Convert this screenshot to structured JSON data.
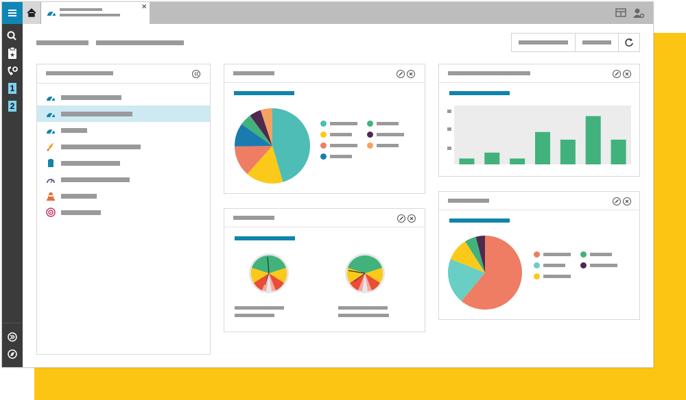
{
  "window": {
    "tab_title": "",
    "tab_subtitle": ""
  },
  "sidebar_nav": {
    "title": "",
    "items": [
      {
        "icon": "dashboard-gauge-icon",
        "label": "",
        "active": false
      },
      {
        "icon": "dashboard-gauge-icon",
        "label": "",
        "active": true
      },
      {
        "icon": "dashboard-gauge-icon",
        "label": "",
        "active": false
      },
      {
        "icon": "rocket-icon",
        "label": "",
        "active": false
      },
      {
        "icon": "clipboard-icon",
        "label": "",
        "active": false
      },
      {
        "icon": "meter-icon",
        "label": "",
        "active": false
      },
      {
        "icon": "traffic-cone-icon",
        "label": "",
        "active": false
      },
      {
        "icon": "target-icon",
        "label": "",
        "active": false
      }
    ]
  },
  "left_toolbar": {
    "icons": [
      "menu-icon",
      "search-icon",
      "clipboard-star-icon",
      "phone-gear-icon",
      "one-icon",
      "two-icon"
    ],
    "bottom_icons": [
      "expand-icon",
      "compass-icon"
    ],
    "labels": [
      "1",
      "2"
    ]
  },
  "header": {
    "breadcrumb": [
      "",
      ""
    ],
    "buttons": [
      "",
      "",
      "refresh-icon"
    ]
  },
  "widgets": {
    "pie_top": {
      "title": "",
      "legend": [
        {
          "color": "#4dbdb5",
          "label": ""
        },
        {
          "color": "#41b27b",
          "label": ""
        },
        {
          "color": "#fbc919",
          "label": ""
        },
        {
          "color": "#4f2a4f",
          "label": ""
        },
        {
          "color": "#ef7d63",
          "label": ""
        },
        {
          "color": "#f4a262",
          "label": ""
        },
        {
          "color": "#1a7bb0",
          "label": ""
        }
      ]
    },
    "bar_chart": {
      "title": ""
    },
    "gauges": {
      "title": "",
      "captions": [
        "",
        "",
        "",
        ""
      ]
    },
    "pie_bottom": {
      "title": "",
      "legend": [
        {
          "color": "#ef7d63",
          "label": ""
        },
        {
          "color": "#41b27b",
          "label": ""
        },
        {
          "color": "#69cfc5",
          "label": ""
        },
        {
          "color": "#4f2a4f",
          "label": ""
        },
        {
          "color": "#fbc919",
          "label": ""
        }
      ]
    }
  },
  "chart_data": [
    {
      "type": "pie",
      "title": "",
      "slices": [
        {
          "color": "#4dbdb5",
          "value": 45
        },
        {
          "color": "#fbc919",
          "value": 16
        },
        {
          "color": "#ef7d63",
          "value": 13
        },
        {
          "color": "#1a7bb0",
          "value": 10
        },
        {
          "color": "#41b27b",
          "value": 5
        },
        {
          "color": "#4f2a4f",
          "value": 5
        },
        {
          "color": "#f4a262",
          "value": 5
        }
      ]
    },
    {
      "type": "bar",
      "title": "",
      "categories": [
        "",
        "",
        "",
        "",
        "",
        "",
        ""
      ],
      "values": [
        1.0,
        2.0,
        1.0,
        5.5,
        4.2,
        8.2,
        4.2
      ],
      "ylim": [
        0,
        10
      ],
      "color": "#41b27b",
      "y_ticks": [
        "",
        "",
        ""
      ]
    },
    {
      "type": "pie",
      "title": "",
      "slices": [
        {
          "color": "#ef7d63",
          "value": 61
        },
        {
          "color": "#69cfc5",
          "value": 20
        },
        {
          "color": "#fbc919",
          "value": 10
        },
        {
          "color": "#41b27b",
          "value": 5
        },
        {
          "color": "#4f2a4f",
          "value": 4
        }
      ]
    }
  ]
}
